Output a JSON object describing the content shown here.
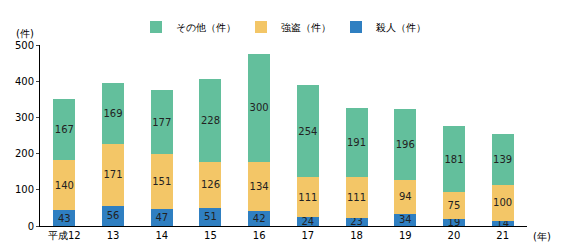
{
  "chart_data": {
    "type": "bar",
    "stacked": true,
    "data_labels": true,
    "grid": false,
    "legend": "top",
    "x_label": "(年)",
    "y_label": "(件)",
    "categories": [
      "平成12",
      "13",
      "14",
      "15",
      "16",
      "17",
      "18",
      "19",
      "20",
      "21"
    ],
    "series": [
      {
        "name": "殺人（件）",
        "color": "#2f7fc1",
        "values": [
          43,
          56,
          47,
          51,
          42,
          24,
          23,
          34,
          19,
          14
        ]
      },
      {
        "name": "強盗（件）",
        "color": "#f3c667",
        "values": [
          140,
          171,
          151,
          126,
          134,
          111,
          111,
          94,
          75,
          100
        ]
      },
      {
        "name": "その他（件）",
        "color": "#63bf9c",
        "values": [
          167,
          169,
          177,
          228,
          300,
          254,
          191,
          196,
          181,
          139
        ]
      }
    ],
    "ylim": [
      0,
      500
    ],
    "yticks": [
      0,
      100,
      200,
      300,
      400,
      500
    ]
  }
}
